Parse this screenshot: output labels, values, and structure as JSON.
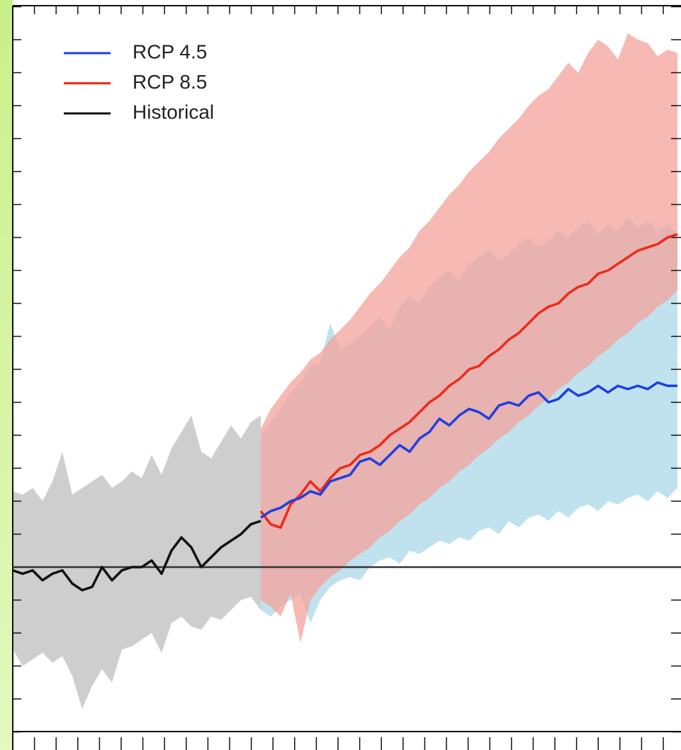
{
  "chart_data": {
    "type": "line",
    "legend": "upper left",
    "ylim": [
      -5,
      17
    ],
    "yticks": [
      -5,
      -4,
      -3,
      -2,
      -1,
      0,
      1,
      2,
      3,
      4,
      5,
      6,
      7,
      8,
      9,
      10,
      11,
      12,
      13,
      14,
      15,
      16,
      17
    ],
    "reference_line": 0,
    "series": [
      {
        "name": "RCP 4.5",
        "color": "#1f3fe0",
        "spread_color": "#a9d8e8",
        "values": [
          null,
          null,
          null,
          null,
          null,
          null,
          null,
          null,
          null,
          null,
          null,
          null,
          null,
          null,
          null,
          null,
          null,
          null,
          null,
          null,
          null,
          null,
          null,
          null,
          null,
          1.5,
          1.7,
          1.8,
          2.0,
          2.1,
          2.3,
          2.2,
          2.6,
          2.7,
          2.8,
          3.2,
          3.3,
          3.1,
          3.4,
          3.7,
          3.5,
          3.9,
          4.1,
          4.5,
          4.3,
          4.6,
          4.8,
          4.7,
          4.5,
          4.9,
          5.0,
          4.9,
          5.2,
          5.3,
          5.0,
          5.1,
          5.4,
          5.2,
          5.3,
          5.5,
          5.3,
          5.5,
          5.4,
          5.5,
          5.4,
          5.6,
          5.5,
          5.5
        ],
        "spread": {
          "low": [
            null,
            null,
            null,
            null,
            null,
            null,
            null,
            null,
            null,
            null,
            null,
            null,
            null,
            null,
            null,
            null,
            null,
            null,
            null,
            null,
            null,
            null,
            null,
            null,
            null,
            -1.3,
            -1.5,
            -1.2,
            -1.0,
            -0.8,
            -1.7,
            -1.0,
            -0.6,
            -0.4,
            -0.3,
            -0.4,
            0.0,
            0.2,
            0.3,
            0.1,
            0.5,
            0.4,
            0.6,
            0.8,
            0.7,
            0.9,
            0.8,
            1.1,
            1.2,
            1.0,
            1.4,
            1.2,
            1.5,
            1.6,
            1.4,
            1.7,
            1.5,
            1.8,
            1.9,
            1.7,
            2.0,
            1.9,
            2.1,
            2.2,
            2.0,
            2.3,
            2.1,
            2.4
          ],
          "high": [
            null,
            null,
            null,
            null,
            null,
            null,
            null,
            null,
            null,
            null,
            null,
            null,
            null,
            null,
            null,
            null,
            null,
            null,
            null,
            null,
            null,
            null,
            null,
            null,
            null,
            4.0,
            4.4,
            4.8,
            5.3,
            5.6,
            6.1,
            6.2,
            7.4,
            6.6,
            6.8,
            7.0,
            7.3,
            7.6,
            7.2,
            7.9,
            8.2,
            8.0,
            8.5,
            8.8,
            9.0,
            8.7,
            9.2,
            9.4,
            9.6,
            9.3,
            9.5,
            9.8,
            10.0,
            9.7,
            9.9,
            10.2,
            10.0,
            10.3,
            10.5,
            10.1,
            10.4,
            10.2,
            10.6,
            10.3,
            10.5,
            10.2,
            10.4,
            10.1
          ]
        }
      },
      {
        "name": "RCP 8.5",
        "color": "#ee2a1b",
        "spread_color": "#f4a199",
        "values": [
          null,
          null,
          null,
          null,
          null,
          null,
          null,
          null,
          null,
          null,
          null,
          null,
          null,
          null,
          null,
          null,
          null,
          null,
          null,
          null,
          null,
          null,
          null,
          null,
          null,
          1.7,
          1.3,
          1.2,
          1.9,
          2.2,
          2.6,
          2.3,
          2.7,
          3.0,
          3.1,
          3.4,
          3.5,
          3.7,
          4.0,
          4.2,
          4.4,
          4.7,
          5.0,
          5.2,
          5.5,
          5.7,
          6.0,
          6.1,
          6.4,
          6.6,
          6.9,
          7.1,
          7.4,
          7.7,
          7.9,
          8.0,
          8.3,
          8.5,
          8.6,
          8.9,
          9.0,
          9.2,
          9.4,
          9.6,
          9.7,
          9.8,
          10.0,
          10.1
        ],
        "spread": {
          "low": [
            null,
            null,
            null,
            null,
            null,
            null,
            null,
            null,
            null,
            null,
            null,
            null,
            null,
            null,
            null,
            null,
            null,
            null,
            null,
            null,
            null,
            null,
            null,
            null,
            null,
            -1.0,
            -1.2,
            -1.5,
            -0.8,
            -2.3,
            -1.0,
            -0.6,
            -0.3,
            -0.1,
            0.2,
            0.4,
            0.6,
            0.9,
            1.1,
            1.4,
            1.6,
            1.9,
            2.1,
            2.4,
            2.6,
            2.9,
            3.1,
            3.4,
            3.6,
            3.9,
            4.1,
            4.4,
            4.6,
            4.9,
            5.1,
            5.4,
            5.6,
            5.9,
            6.1,
            6.4,
            6.6,
            6.9,
            7.1,
            7.4,
            7.6,
            7.9,
            8.1,
            8.4
          ],
          "high": [
            null,
            null,
            null,
            null,
            null,
            null,
            null,
            null,
            null,
            null,
            null,
            null,
            null,
            null,
            null,
            null,
            null,
            null,
            null,
            null,
            null,
            null,
            null,
            null,
            null,
            4.2,
            4.8,
            5.2,
            5.6,
            5.9,
            6.3,
            6.5,
            6.9,
            7.2,
            7.5,
            7.9,
            8.3,
            8.6,
            9.0,
            9.4,
            9.7,
            10.2,
            10.5,
            10.9,
            11.3,
            11.6,
            12.0,
            12.3,
            12.6,
            13.0,
            13.3,
            13.6,
            14.0,
            14.3,
            14.5,
            14.9,
            15.3,
            15.0,
            15.6,
            16.0,
            15.8,
            15.4,
            16.2,
            16.0,
            15.9,
            15.5,
            15.7,
            15.6
          ]
        }
      },
      {
        "name": "Historical",
        "color": "#111111",
        "spread_color": "#bdbdbd",
        "values": [
          -0.1,
          -0.2,
          -0.1,
          -0.4,
          -0.2,
          -0.1,
          -0.5,
          -0.7,
          -0.6,
          0,
          -0.4,
          -0.1,
          0,
          0,
          0.2,
          -0.2,
          0.5,
          0.9,
          0.6,
          0,
          0.3,
          0.6,
          0.8,
          1.0,
          1.3,
          1.4,
          null,
          null,
          null,
          null,
          null,
          null,
          null,
          null,
          null,
          null,
          null,
          null,
          null,
          null,
          null,
          null,
          null,
          null,
          null,
          null,
          null,
          null,
          null,
          null,
          null,
          null,
          null,
          null,
          null,
          null,
          null,
          null,
          null,
          null,
          null,
          null,
          null,
          null,
          null,
          null,
          null,
          null
        ],
        "spread": {
          "low": [
            -2.5,
            -3.0,
            -2.8,
            -2.6,
            -2.9,
            -2.7,
            -3.3,
            -4.3,
            -3.6,
            -3.1,
            -3.5,
            -2.5,
            -2.4,
            -2.2,
            -2.0,
            -2.6,
            -1.7,
            -1.5,
            -1.8,
            -1.9,
            -1.5,
            -1.6,
            -1.3,
            -1.0,
            -0.9,
            -1.3,
            null,
            null,
            null,
            null,
            null,
            null,
            null,
            null,
            null,
            null,
            null,
            null,
            null,
            null,
            null,
            null,
            null,
            null,
            null,
            null,
            null,
            null,
            null,
            null,
            null,
            null,
            null,
            null,
            null,
            null,
            null,
            null,
            null,
            null,
            null,
            null,
            null,
            null,
            null,
            null,
            null,
            null
          ],
          "high": [
            2.3,
            2.2,
            2.4,
            2.0,
            2.6,
            3.5,
            2.2,
            2.4,
            2.6,
            2.8,
            2.4,
            2.6,
            2.9,
            2.7,
            3.4,
            2.8,
            3.6,
            4.1,
            4.6,
            3.5,
            3.3,
            3.8,
            4.3,
            3.9,
            4.4,
            4.6,
            null,
            null,
            null,
            null,
            null,
            null,
            null,
            null,
            null,
            null,
            null,
            null,
            null,
            null,
            null,
            null,
            null,
            null,
            null,
            null,
            null,
            null,
            null,
            null,
            null,
            null,
            null,
            null,
            null,
            null,
            null,
            null,
            null,
            null,
            null,
            null,
            null,
            null,
            null,
            null,
            null,
            null
          ]
        }
      }
    ]
  }
}
